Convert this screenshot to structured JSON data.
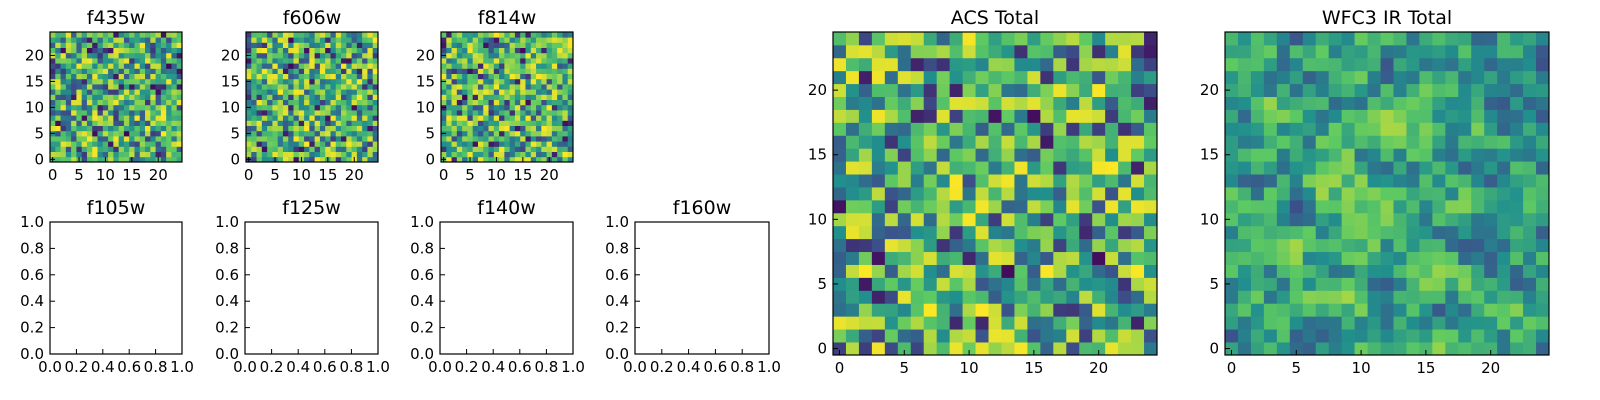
{
  "colormap": [
    "#440154",
    "#3b528b",
    "#21908d",
    "#5dc963",
    "#fde725"
  ],
  "chart_data": [
    {
      "type": "heatmap",
      "title": "f435w",
      "grid_size": 25,
      "xticks": [
        0,
        5,
        10,
        15,
        20
      ],
      "yticks": [
        0,
        5,
        10,
        15,
        20
      ],
      "tick_labels_x": [
        "0",
        "5",
        "10",
        "15",
        "20"
      ],
      "tick_labels_y": [
        "0",
        "5",
        "10",
        "15",
        "20"
      ],
      "seed": 11,
      "smooth": 0
    },
    {
      "type": "heatmap",
      "title": "f606w",
      "grid_size": 25,
      "xticks": [
        0,
        5,
        10,
        15,
        20
      ],
      "yticks": [
        0,
        5,
        10,
        15,
        20
      ],
      "tick_labels_x": [
        "0",
        "5",
        "10",
        "15",
        "20"
      ],
      "tick_labels_y": [
        "0",
        "5",
        "10",
        "15",
        "20"
      ],
      "seed": 23,
      "smooth": 0
    },
    {
      "type": "heatmap",
      "title": "f814w",
      "grid_size": 25,
      "xticks": [
        0,
        5,
        10,
        15,
        20
      ],
      "yticks": [
        0,
        5,
        10,
        15,
        20
      ],
      "tick_labels_x": [
        "0",
        "5",
        "10",
        "15",
        "20"
      ],
      "tick_labels_y": [
        "0",
        "5",
        "10",
        "15",
        "20"
      ],
      "seed": 37,
      "smooth": 0
    },
    {
      "type": "empty",
      "title": "f105w",
      "xlim": [
        0,
        1
      ],
      "ylim": [
        0,
        1
      ],
      "tick_labels_x": [
        "0.0",
        "0.2",
        "0.4",
        "0.6",
        "0.8",
        "1.0"
      ],
      "tick_labels_y": [
        "0.0",
        "0.2",
        "0.4",
        "0.6",
        "0.8",
        "1.0"
      ]
    },
    {
      "type": "empty",
      "title": "f125w",
      "xlim": [
        0,
        1
      ],
      "ylim": [
        0,
        1
      ],
      "tick_labels_x": [
        "0.0",
        "0.2",
        "0.4",
        "0.6",
        "0.8",
        "1.0"
      ],
      "tick_labels_y": [
        "0.0",
        "0.2",
        "0.4",
        "0.6",
        "0.8",
        "1.0"
      ]
    },
    {
      "type": "empty",
      "title": "f140w",
      "xlim": [
        0,
        1
      ],
      "ylim": [
        0,
        1
      ],
      "tick_labels_x": [
        "0.0",
        "0.2",
        "0.4",
        "0.6",
        "0.8",
        "1.0"
      ],
      "tick_labels_y": [
        "0.0",
        "0.2",
        "0.4",
        "0.6",
        "0.8",
        "1.0"
      ]
    },
    {
      "type": "empty",
      "title": "f160w",
      "xlim": [
        0,
        1
      ],
      "ylim": [
        0,
        1
      ],
      "tick_labels_x": [
        "0.0",
        "0.2",
        "0.4",
        "0.6",
        "0.8",
        "1.0"
      ],
      "tick_labels_y": [
        "0.0",
        "0.2",
        "0.4",
        "0.6",
        "0.8",
        "1.0"
      ]
    },
    {
      "type": "heatmap",
      "title": "ACS Total",
      "grid_size": 25,
      "xticks": [
        0,
        5,
        10,
        15,
        20
      ],
      "yticks": [
        0,
        5,
        10,
        15,
        20
      ],
      "tick_labels_x": [
        "0",
        "5",
        "10",
        "15",
        "20"
      ],
      "tick_labels_y": [
        "0",
        "5",
        "10",
        "15",
        "20"
      ],
      "seed": 53,
      "smooth": 0
    },
    {
      "type": "heatmap",
      "title": "WFC3 IR Total",
      "grid_size": 25,
      "xticks": [
        0,
        5,
        10,
        15,
        20
      ],
      "yticks": [
        0,
        5,
        10,
        15,
        20
      ],
      "tick_labels_x": [
        "0",
        "5",
        "10",
        "15",
        "20"
      ],
      "tick_labels_y": [
        "0",
        "5",
        "10",
        "15",
        "20"
      ],
      "seed": 71,
      "smooth": 1
    }
  ]
}
